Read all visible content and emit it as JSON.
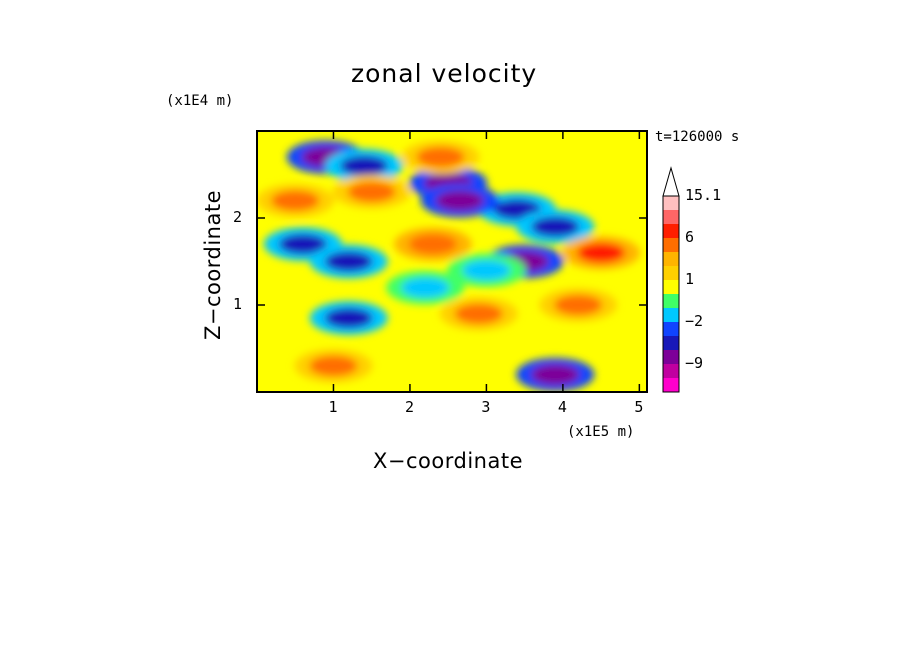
{
  "chart_data": {
    "type": "heatmap",
    "title": "zonal velocity",
    "xlabel": "X−coordinate",
    "ylabel": "Z−coordinate",
    "x_unit": "(x1E5 m)",
    "y_unit": "(x1E4 m)",
    "time_label": "t=126000 s",
    "xlim": [
      0,
      5.1
    ],
    "ylim": [
      0,
      3.0
    ],
    "x_ticks": [
      1,
      2,
      3,
      4,
      5
    ],
    "y_ticks": [
      1,
      2
    ],
    "colorbar": {
      "levels": [
        -15,
        -12,
        -9,
        -6,
        -4,
        -2,
        -1,
        0,
        1,
        2,
        3,
        6,
        9,
        12,
        15.1
      ],
      "labels": [
        "15.1",
        "6",
        "1",
        "−2",
        "−9"
      ],
      "label_values": [
        15.1,
        6,
        1,
        -2,
        -9
      ],
      "colors": [
        "#ff00cc",
        "#c000a0",
        "#7d0099",
        "#1818b8",
        "#1044ff",
        "#00c8ff",
        "#40ff66",
        "#ffff00",
        "#ffd000",
        "#ffb400",
        "#ff6e00",
        "#ff1e00",
        "#ff6666",
        "#ffc0c0"
      ],
      "extend_max": true
    },
    "features": [
      {
        "x": 0.9,
        "z": 2.7,
        "u": -9
      },
      {
        "x": 1.4,
        "z": 2.6,
        "u": -6
      },
      {
        "x": 2.5,
        "z": 2.4,
        "u": -7
      },
      {
        "x": 3.4,
        "z": 2.1,
        "u": -6
      },
      {
        "x": 3.9,
        "z": 1.9,
        "u": -6
      },
      {
        "x": 2.65,
        "z": 2.2,
        "u": -9
      },
      {
        "x": 0.6,
        "z": 1.7,
        "u": -5
      },
      {
        "x": 1.2,
        "z": 1.5,
        "u": -5
      },
      {
        "x": 3.5,
        "z": 1.5,
        "u": -7
      },
      {
        "x": 2.2,
        "z": 1.2,
        "u": -1.5
      },
      {
        "x": 3.0,
        "z": 1.4,
        "u": -1.5
      },
      {
        "x": 1.2,
        "z": 0.85,
        "u": -6
      },
      {
        "x": 3.9,
        "z": 0.2,
        "u": -8
      },
      {
        "x": 0.5,
        "z": 2.2,
        "u": 4
      },
      {
        "x": 1.5,
        "z": 2.3,
        "u": 4
      },
      {
        "x": 2.3,
        "z": 1.7,
        "u": 5
      },
      {
        "x": 2.4,
        "z": 2.7,
        "u": 4
      },
      {
        "x": 4.5,
        "z": 1.6,
        "u": 6
      },
      {
        "x": 2.9,
        "z": 0.9,
        "u": 3
      },
      {
        "x": 4.2,
        "z": 1.0,
        "u": 3
      },
      {
        "x": 1.0,
        "z": 0.3,
        "u": 3
      }
    ]
  }
}
